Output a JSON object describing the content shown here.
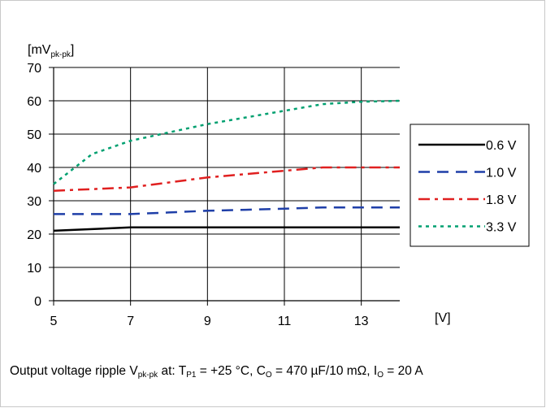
{
  "chart_data": {
    "type": "line",
    "ylabel_main": "[mV",
    "ylabel_sub": "pk-pk",
    "ylabel_close": "]",
    "xlabel": "[V]",
    "xlim": [
      5,
      14
    ],
    "ylim": [
      0,
      70
    ],
    "xticks": [
      5,
      7,
      9,
      11,
      13
    ],
    "yticks": [
      0,
      10,
      20,
      30,
      40,
      50,
      60,
      70
    ],
    "grid": true,
    "legend_position": "right",
    "series": [
      {
        "name": "0.6 V",
        "color": "#000000",
        "dash": "solid",
        "x": [
          5,
          6,
          7,
          8,
          9,
          10,
          11,
          12,
          13,
          14
        ],
        "y": [
          21,
          21.5,
          22,
          22,
          22,
          22,
          22,
          22,
          22,
          22
        ]
      },
      {
        "name": "1.0 V",
        "color": "#1f3fa8",
        "dash": "dash",
        "x": [
          5,
          6,
          7,
          8,
          9,
          10,
          11,
          12,
          13,
          14
        ],
        "y": [
          26,
          26,
          26,
          26.5,
          27,
          27.3,
          27.6,
          28,
          28,
          28
        ]
      },
      {
        "name": "1.8 V",
        "color": "#e02020",
        "dash": "dashdot",
        "x": [
          5,
          6,
          7,
          8,
          9,
          10,
          11,
          12,
          13,
          14
        ],
        "y": [
          33,
          33.5,
          34,
          35.5,
          37,
          38,
          39,
          40,
          40,
          40
        ]
      },
      {
        "name": "3.3 V",
        "color": "#00a070",
        "dash": "dot",
        "x": [
          5,
          6,
          7,
          8,
          9,
          10,
          11,
          12,
          13,
          14
        ],
        "y": [
          35,
          44,
          48,
          50.5,
          53,
          55,
          57,
          59,
          59.7,
          60
        ]
      }
    ]
  },
  "caption": {
    "p1": "Output voltage ripple V",
    "s1": "pk-pk",
    "p2": " at: T",
    "s2": "P1",
    "p3": " = +25 °C, C",
    "s3": "O",
    "p4": " = 470 µF/10 mΩ, I",
    "s4": "O",
    "p5": " = 20 A"
  }
}
